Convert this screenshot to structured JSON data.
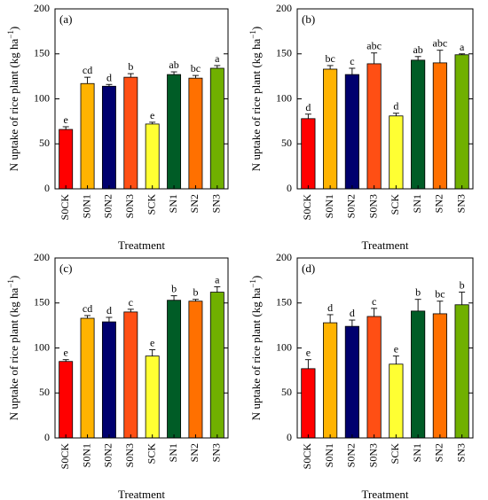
{
  "colors": [
    "#ff0000",
    "#ffb300",
    "#00006e",
    "#ff4f14",
    "#ffff33",
    "#005c26",
    "#ff7000",
    "#70b000"
  ],
  "chart_data": [
    {
      "type": "bar",
      "panel_label": "(a)",
      "categories": [
        "S0CK",
        "S0N1",
        "S0N2",
        "S0N3",
        "SCK",
        "SN1",
        "SN2",
        "SN3"
      ],
      "values": [
        66,
        117,
        114,
        124,
        72,
        127,
        123,
        134
      ],
      "errors": [
        3,
        7,
        2,
        4,
        2,
        3,
        3,
        3
      ],
      "significance_letters": [
        "e",
        "cd",
        "d",
        "b",
        "e",
        "ab",
        "bc",
        "a"
      ],
      "xlabel": "Treatment",
      "ylabel": "N uptake of rice plant (kg ha",
      "ylabel_exponent": "−1",
      "ylabel_close": ")",
      "ylim": [
        0,
        200
      ],
      "yticks": [
        "0",
        "50",
        "100",
        "150",
        "200"
      ]
    },
    {
      "type": "bar",
      "panel_label": "(b)",
      "categories": [
        "S0CK",
        "S0N1",
        "S0N2",
        "S0N3",
        "SCK",
        "SN1",
        "SN2",
        "SN3"
      ],
      "values": [
        78,
        133,
        127,
        139,
        81,
        143,
        140,
        149
      ],
      "errors": [
        5,
        4,
        7,
        12,
        3,
        4,
        14,
        1
      ],
      "significance_letters": [
        "d",
        "bc",
        "c",
        "abc",
        "d",
        "ab",
        "abc",
        "a"
      ],
      "xlabel": "Treatment",
      "ylabel": "N uptake of rice plant (kg ha",
      "ylabel_exponent": "−1",
      "ylabel_close": ")",
      "ylim": [
        0,
        200
      ],
      "yticks": [
        "0",
        "50",
        "100",
        "150",
        "200"
      ]
    },
    {
      "type": "bar",
      "panel_label": "(c)",
      "categories": [
        "S0CK",
        "S0N1",
        "S0N2",
        "S0N3",
        "SCK",
        "SN1",
        "SN2",
        "SN3"
      ],
      "values": [
        85,
        133,
        129,
        140,
        91,
        153,
        152,
        162
      ],
      "errors": [
        2,
        3,
        5,
        3,
        7,
        5,
        2,
        6
      ],
      "significance_letters": [
        "e",
        "cd",
        "d",
        "c",
        "e",
        "b",
        "b",
        "a"
      ],
      "xlabel": "Treatment",
      "ylabel": "N uptake of rice plant (kg ha",
      "ylabel_exponent": "−1",
      "ylabel_close": ")",
      "ylim": [
        0,
        200
      ],
      "yticks": [
        "0",
        "50",
        "100",
        "150",
        "200"
      ]
    },
    {
      "type": "bar",
      "panel_label": "(d)",
      "categories": [
        "S0CK",
        "S0N1",
        "S0N2",
        "S0N3",
        "SCK",
        "SN1",
        "SN2",
        "SN3"
      ],
      "values": [
        77,
        128,
        124,
        135,
        82,
        141,
        138,
        148
      ],
      "errors": [
        10,
        9,
        7,
        9,
        9,
        13,
        14,
        14
      ],
      "significance_letters": [
        "e",
        "d",
        "d",
        "c",
        "e",
        "b",
        "bc",
        "b"
      ],
      "xlabel": "Treatment",
      "ylabel": "N uptake of rice plant (kg ha",
      "ylabel_exponent": "−1",
      "ylabel_close": ")",
      "ylim": [
        0,
        200
      ],
      "yticks": [
        "0",
        "50",
        "100",
        "150",
        "200"
      ]
    }
  ]
}
